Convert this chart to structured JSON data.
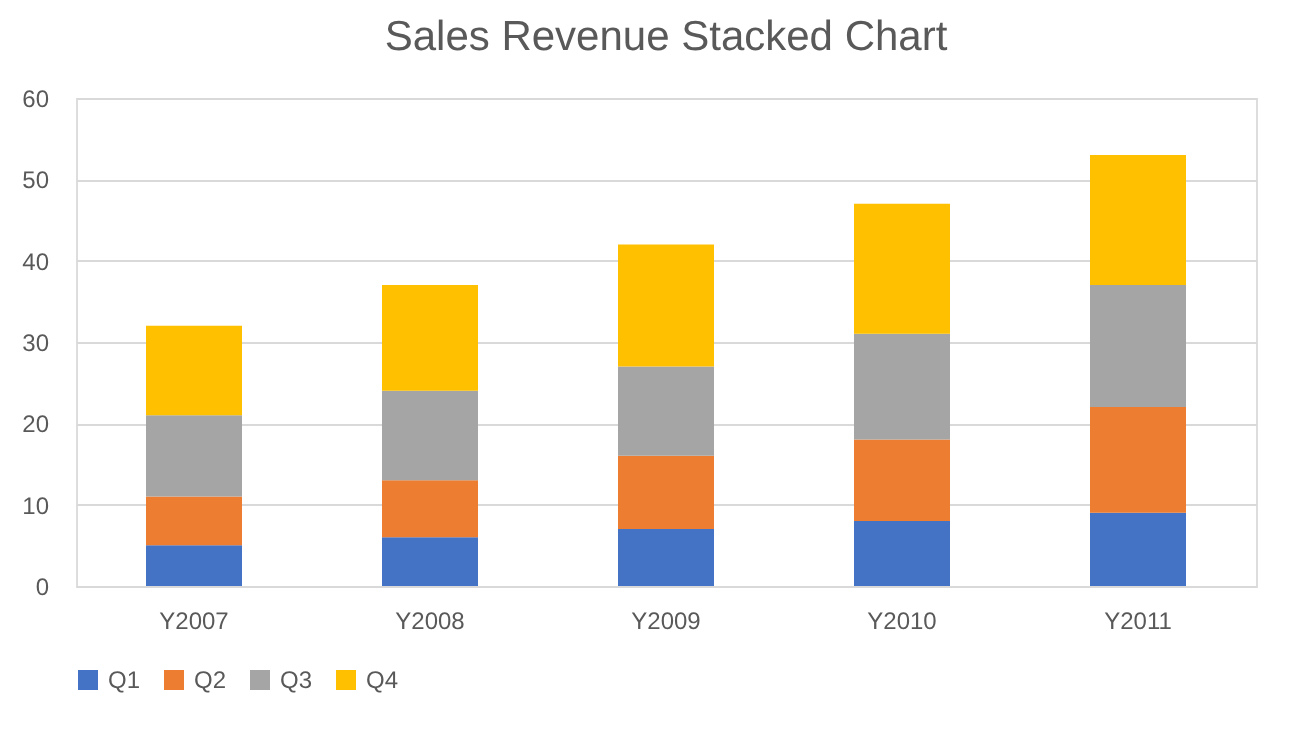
{
  "chart_data": {
    "type": "bar",
    "title": "Sales Revenue Stacked Chart",
    "stacked": true,
    "categories": [
      "Y2007",
      "Y2008",
      "Y2009",
      "Y2010",
      "Y2011"
    ],
    "series": [
      {
        "name": "Q1",
        "color": "#4472c4",
        "values": [
          5,
          6,
          7,
          8,
          9
        ]
      },
      {
        "name": "Q2",
        "color": "#ed7d31",
        "values": [
          6,
          7,
          9,
          10,
          13
        ]
      },
      {
        "name": "Q3",
        "color": "#a5a5a5",
        "values": [
          10,
          11,
          11,
          13,
          15
        ]
      },
      {
        "name": "Q4",
        "color": "#ffc000",
        "values": [
          11,
          13,
          15,
          16,
          16
        ]
      }
    ],
    "ylim": [
      0,
      60
    ],
    "yticks": [
      0,
      10,
      20,
      30,
      40,
      50,
      60
    ],
    "grid": "y",
    "legend": "bottom"
  }
}
